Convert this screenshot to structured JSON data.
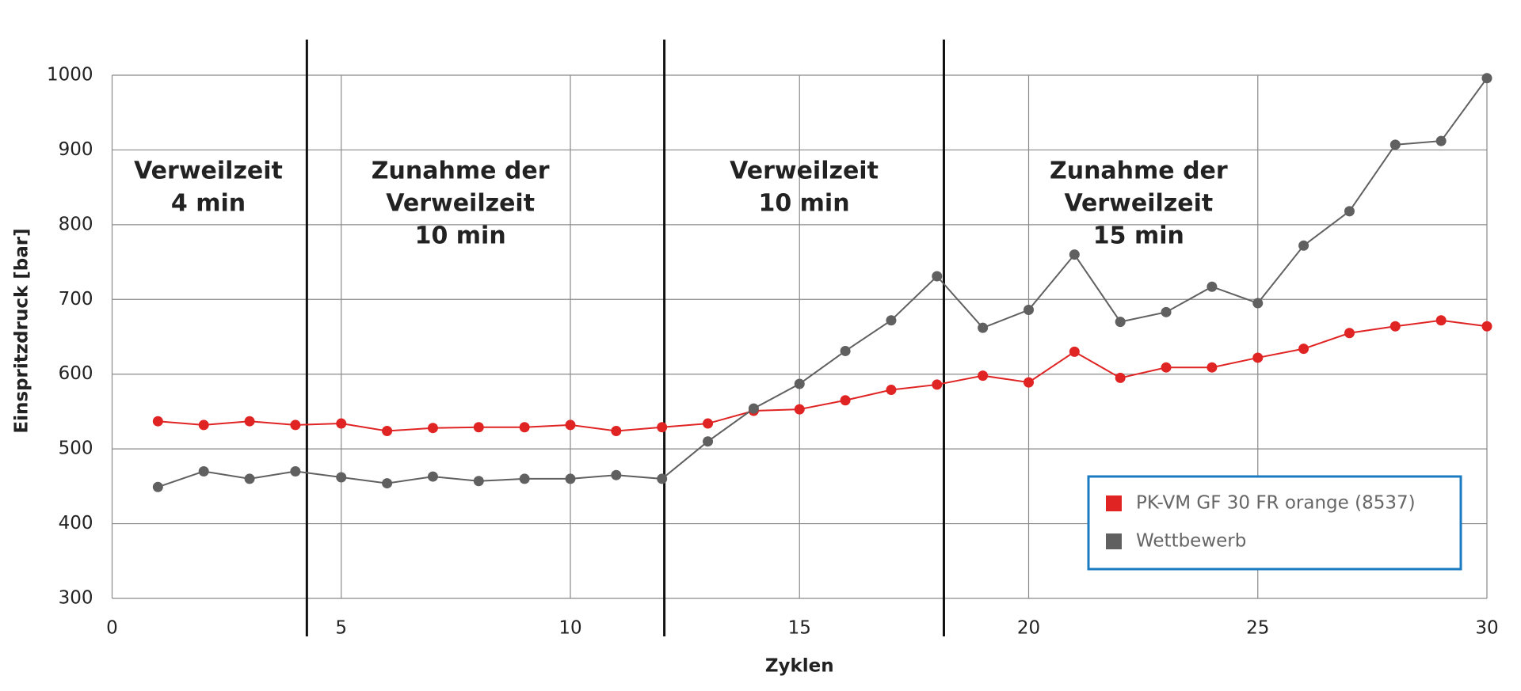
{
  "chart_data": {
    "type": "line",
    "x_label": "Zyklen",
    "y_label": "Einspritzdruck  [bar]",
    "x": [
      1,
      2,
      3,
      4,
      5,
      6,
      7,
      8,
      9,
      10,
      11,
      12,
      13,
      14,
      15,
      16,
      17,
      18,
      19,
      20,
      21,
      22,
      23,
      24,
      25,
      26,
      27,
      28,
      29,
      30
    ],
    "series": [
      {
        "name": "PK-VM GF 30 FR orange (8537)",
        "color": "#e02424",
        "values": [
          537,
          532,
          537,
          532,
          534,
          524,
          528,
          529,
          529,
          532,
          524,
          529,
          534,
          551,
          553,
          565,
          579,
          586,
          598,
          589,
          630,
          595,
          609,
          609,
          622,
          634,
          655,
          664,
          672,
          664
        ]
      },
      {
        "name": "Wettbewerb",
        "color": "#606060",
        "values": [
          449,
          470,
          460,
          470,
          462,
          454,
          463,
          457,
          460,
          460,
          465,
          460,
          510,
          554,
          587,
          631,
          672,
          731,
          662,
          686,
          760,
          670,
          683,
          717,
          695,
          772,
          818,
          907,
          912,
          996
        ]
      }
    ],
    "xlim": [
      0,
      30
    ],
    "xticks": [
      0,
      5,
      10,
      15,
      20,
      25,
      30
    ],
    "ylim": [
      300,
      1000
    ],
    "yticks": [
      300,
      400,
      500,
      600,
      700,
      800,
      900,
      1000
    ],
    "grid": true,
    "vlines": [
      4.25,
      12.05,
      18.15
    ],
    "annotations": [
      {
        "lines": [
          "Verweilzeit",
          "4 min"
        ]
      },
      {
        "lines": [
          "Zunahme der",
          "Verweilzeit",
          "10 min"
        ]
      },
      {
        "lines": [
          "Verweilzeit",
          "10 min"
        ]
      },
      {
        "lines": [
          "Zunahme der",
          "Verweilzeit",
          "15 min"
        ]
      }
    ],
    "legend": "lower right"
  }
}
